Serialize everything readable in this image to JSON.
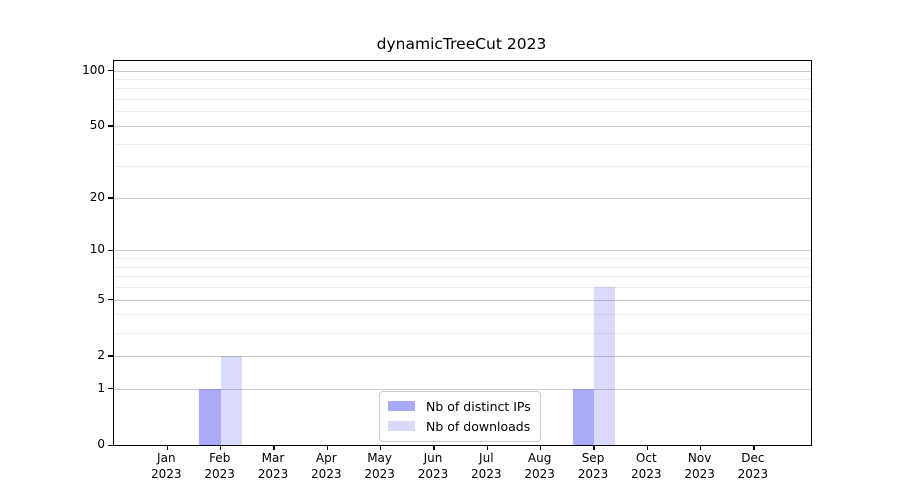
{
  "title": "dynamicTreeCut 2023",
  "chart_data": {
    "type": "bar",
    "title": "dynamicTreeCut 2023",
    "categories": [
      "Jan",
      "Feb",
      "Mar",
      "Apr",
      "May",
      "Jun",
      "Jul",
      "Aug",
      "Sep",
      "Oct",
      "Nov",
      "Dec"
    ],
    "category_sublabel": "2023",
    "series": [
      {
        "name": "Nb of distinct IPs",
        "color": "rgba(80,83,238,0.49)",
        "values": [
          0,
          1,
          0,
          0,
          0,
          0,
          0,
          0,
          1,
          0,
          0,
          0
        ]
      },
      {
        "name": "Nb of downloads",
        "color": "rgba(80,83,238,0.21)",
        "values": [
          0,
          2,
          0,
          0,
          0,
          0,
          0,
          0,
          6,
          0,
          0,
          0
        ]
      }
    ],
    "xlabel": "",
    "ylabel": "",
    "yscale": "log1p",
    "yticks": [
      0,
      1,
      2,
      5,
      10,
      20,
      50,
      100
    ],
    "yticks_minor": [
      3,
      4,
      6,
      7,
      8,
      9,
      30,
      40,
      60,
      70,
      80,
      90
    ],
    "ylim": [
      0,
      112.5
    ],
    "grid": true,
    "legend": {
      "position": "inside-bottom-center",
      "entries": [
        "Nb of distinct IPs",
        "Nb of downloads"
      ]
    },
    "colors": {
      "grid_major": "#cbcbcb",
      "grid_minor": "#ededed",
      "spine": "#000000",
      "background": "#ffffff"
    }
  }
}
